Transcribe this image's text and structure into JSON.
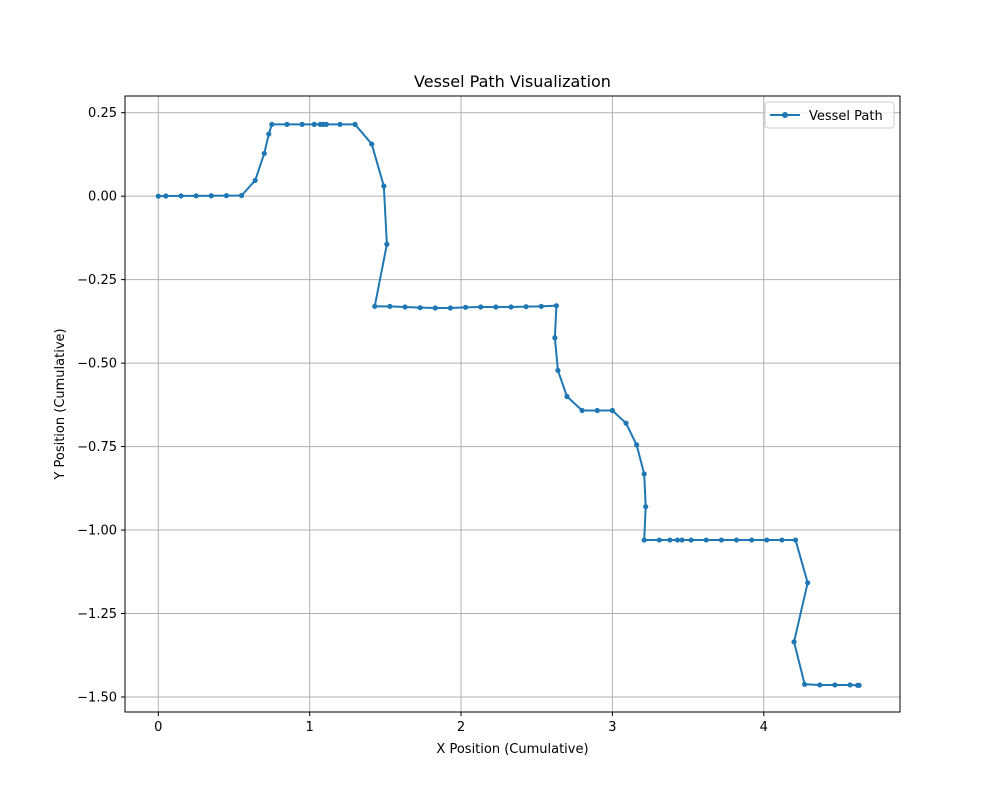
{
  "chart_data": {
    "type": "line",
    "title": "Vessel Path Visualization",
    "xlabel": "X Position (Cumulative)",
    "ylabel": "Y Position (Cumulative)",
    "xlim": [
      -0.22,
      4.9
    ],
    "ylim": [
      -1.545,
      0.3
    ],
    "xticks": [
      0,
      1,
      2,
      3,
      4
    ],
    "xtick_labels": [
      "0",
      "1",
      "2",
      "3",
      "4"
    ],
    "yticks": [
      0.25,
      0.0,
      -0.25,
      -0.5,
      -0.75,
      -1.0,
      -1.25,
      -1.5
    ],
    "ytick_labels": [
      "0.25",
      "0.00",
      "−0.25",
      "−0.50",
      "−0.75",
      "−1.00",
      "−1.25",
      "−1.50"
    ],
    "grid": true,
    "legend_position": "top-right",
    "series": [
      {
        "name": "Vessel Path",
        "color": "#1f77b4",
        "marker": "circle",
        "x": [
          0,
          0.05,
          0.15,
          0.25,
          0.35,
          0.45,
          0.55,
          0.64,
          0.7,
          0.73,
          0.75,
          0.85,
          0.95,
          1.03,
          1.07,
          1.09,
          1.11,
          1.2,
          1.3,
          1.41,
          1.49,
          1.51,
          1.43,
          1.53,
          1.63,
          1.73,
          1.83,
          1.93,
          2.03,
          2.13,
          2.23,
          2.33,
          2.43,
          2.53,
          2.63,
          2.62,
          2.64,
          2.7,
          2.8,
          2.9,
          3.0,
          3.09,
          3.16,
          3.21,
          3.22,
          3.21,
          3.31,
          3.38,
          3.43,
          3.46,
          3.52,
          3.62,
          3.72,
          3.82,
          3.92,
          4.02,
          4.12,
          4.21,
          4.29,
          4.2,
          4.27,
          4.37,
          4.47,
          4.57,
          4.62,
          4.63
        ],
        "y": [
          0,
          0.0005,
          0.0008,
          0.001,
          0.0012,
          0.0015,
          0.002,
          0.047,
          0.128,
          0.186,
          0.215,
          0.215,
          0.215,
          0.215,
          0.215,
          0.215,
          0.215,
          0.215,
          0.215,
          0.156,
          0.03,
          -0.144,
          -0.33,
          -0.33,
          -0.332,
          -0.334,
          -0.335,
          -0.335,
          -0.333,
          -0.332,
          -0.332,
          -0.332,
          -0.331,
          -0.33,
          -0.328,
          -0.424,
          -0.522,
          -0.6,
          -0.642,
          -0.642,
          -0.642,
          -0.68,
          -0.745,
          -0.832,
          -0.93,
          -1.03,
          -1.03,
          -1.03,
          -1.03,
          -1.03,
          -1.03,
          -1.03,
          -1.03,
          -1.03,
          -1.03,
          -1.03,
          -1.03,
          -1.03,
          -1.158,
          -1.335,
          -1.462,
          -1.464,
          -1.464,
          -1.464,
          -1.465,
          -1.465
        ]
      }
    ]
  }
}
